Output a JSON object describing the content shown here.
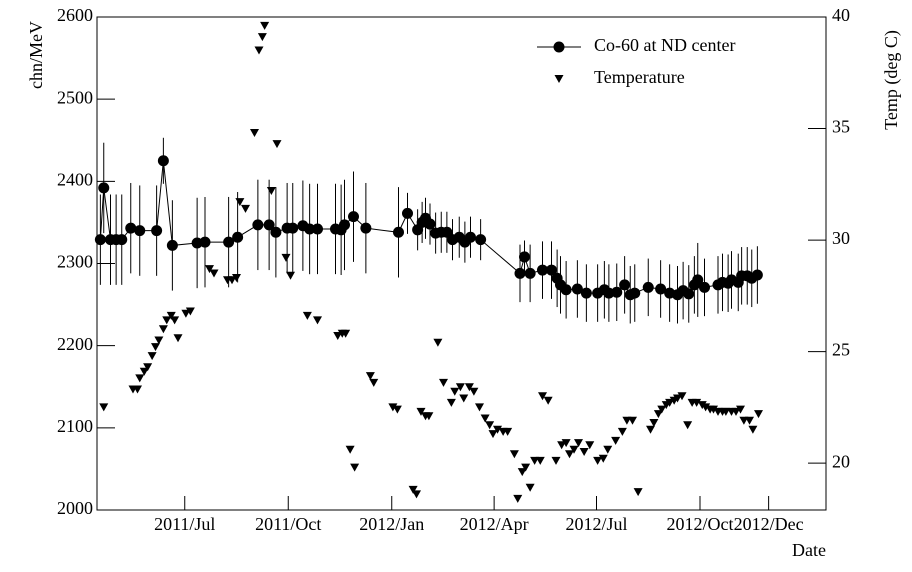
{
  "chart_data": {
    "type": "scatter",
    "y_label": "chn/MeV",
    "y2_label": "Temp (deg C)",
    "x_label": "Date",
    "xlim": [
      103,
      751
    ],
    "xticks": [
      {
        "value": 181,
        "label": "2011/Jul"
      },
      {
        "value": 273,
        "label": "2011/Oct"
      },
      {
        "value": 365,
        "label": "2012/Jan"
      },
      {
        "value": 456,
        "label": "2012/Apr"
      },
      {
        "value": 547,
        "label": "2012/Jul"
      },
      {
        "value": 639,
        "label": "2012/Oct"
      },
      {
        "value": 700,
        "label": "2012/Dec"
      }
    ],
    "ylim": [
      2000,
      2600
    ],
    "yticks": [
      2000,
      2100,
      2200,
      2300,
      2400,
      2500,
      2600
    ],
    "y2lim": [
      17.9,
      40
    ],
    "y2ticks": [
      20,
      25,
      30,
      35,
      40
    ],
    "legend": "top-right",
    "series": [
      {
        "name": "Co-60 at ND center",
        "color": "#000000",
        "marker": "circle",
        "line": true,
        "x": [
          106,
          109,
          115,
          120,
          125,
          133,
          141,
          156,
          162,
          170,
          192,
          199,
          220,
          228,
          246,
          256,
          262,
          272,
          277,
          286,
          292,
          299,
          315,
          320,
          323,
          331,
          342,
          371,
          379,
          388,
          392,
          395,
          399,
          404,
          409,
          414,
          419,
          425,
          430,
          435,
          444,
          479,
          483,
          488,
          499,
          507,
          512,
          515,
          520,
          530,
          538,
          548,
          554,
          558,
          565,
          572,
          577,
          581,
          593,
          604,
          612,
          619,
          624,
          629,
          634,
          637,
          643,
          655,
          659,
          664,
          667,
          673,
          676,
          681,
          685,
          690
        ],
        "values": [
          2329,
          2392,
          2329,
          2329,
          2329,
          2343,
          2340,
          2340,
          2425,
          2322,
          2325,
          2326,
          2326,
          2332,
          2347,
          2347,
          2338,
          2343,
          2343,
          2346,
          2342,
          2342,
          2342,
          2341,
          2347,
          2357,
          2343,
          2338,
          2361,
          2341,
          2350,
          2355,
          2348,
          2337,
          2338,
          2338,
          2329,
          2332,
          2326,
          2332,
          2329,
          2288,
          2308,
          2288,
          2292,
          2292,
          2282,
          2274,
          2268,
          2269,
          2264,
          2264,
          2268,
          2264,
          2265,
          2274,
          2262,
          2264,
          2271,
          2269,
          2264,
          2262,
          2267,
          2263,
          2274,
          2280,
          2271,
          2274,
          2277,
          2276,
          2280,
          2277,
          2285,
          2285,
          2282,
          2286
        ],
        "errors": [
          55,
          55,
          55,
          55,
          55,
          55,
          55,
          55,
          28,
          55,
          55,
          55,
          55,
          55,
          55,
          55,
          55,
          55,
          55,
          55,
          55,
          55,
          55,
          55,
          55,
          55,
          55,
          55,
          25,
          25,
          25,
          25,
          25,
          25,
          25,
          25,
          25,
          25,
          25,
          25,
          25,
          35,
          20,
          35,
          35,
          35,
          35,
          35,
          35,
          35,
          35,
          35,
          35,
          35,
          35,
          35,
          35,
          35,
          35,
          35,
          35,
          35,
          35,
          35,
          35,
          45,
          35,
          35,
          35,
          35,
          35,
          35,
          35,
          35,
          35,
          35
        ]
      },
      {
        "name": "Temperature",
        "color": "#000000",
        "marker": "triangle-down",
        "axis": "y2",
        "x": [
          109,
          135,
          139,
          141,
          145,
          148,
          152,
          155,
          158,
          162,
          165,
          169,
          172,
          175,
          182,
          186,
          203,
          207,
          219,
          223,
          227,
          230,
          235,
          243,
          247,
          250,
          252,
          258,
          263,
          271,
          275,
          290,
          299,
          317,
          321,
          324,
          328,
          332,
          346,
          349,
          366,
          370,
          384,
          387,
          391,
          395,
          398,
          406,
          411,
          418,
          421,
          426,
          429,
          434,
          438,
          443,
          448,
          452,
          455,
          459,
          464,
          468,
          474,
          477,
          481,
          484,
          488,
          492,
          497,
          499,
          504,
          511,
          516,
          520,
          523,
          527,
          531,
          536,
          541,
          548,
          553,
          557,
          564,
          570,
          574,
          579,
          584,
          595,
          598,
          602,
          605,
          609,
          612,
          616,
          619,
          623,
          628,
          632,
          636,
          641,
          644,
          648,
          651,
          655,
          659,
          662,
          667,
          671,
          675,
          678,
          683,
          686,
          691
        ],
        "values": [
          22.5,
          23.3,
          23.3,
          23.8,
          24.1,
          24.3,
          24.8,
          25.2,
          25.5,
          26.0,
          26.4,
          26.6,
          26.4,
          25.6,
          26.7,
          26.8,
          28.7,
          28.5,
          28.2,
          28.2,
          28.3,
          31.7,
          31.4,
          34.8,
          38.5,
          39.1,
          39.6,
          32.2,
          34.3,
          29.2,
          28.4,
          26.6,
          26.4,
          25.7,
          25.8,
          25.8,
          20.6,
          19.8,
          23.9,
          23.6,
          22.5,
          22.4,
          18.8,
          18.6,
          22.3,
          22.1,
          22.1,
          25.4,
          23.6,
          22.7,
          23.2,
          23.4,
          22.9,
          23.4,
          23.2,
          22.5,
          22.0,
          21.7,
          21.3,
          21.5,
          21.4,
          21.4,
          20.4,
          18.4,
          19.6,
          19.8,
          18.9,
          20.1,
          20.1,
          23.0,
          22.8,
          20.1,
          20.8,
          20.9,
          20.4,
          20.6,
          20.9,
          20.5,
          20.8,
          20.1,
          20.2,
          20.6,
          21.0,
          21.4,
          21.9,
          21.9,
          18.7,
          21.5,
          21.8,
          22.2,
          22.4,
          22.6,
          22.7,
          22.8,
          22.9,
          23.0,
          21.7,
          22.7,
          22.7,
          22.6,
          22.5,
          22.4,
          22.4,
          22.3,
          22.3,
          22.3,
          22.3,
          22.3,
          22.4,
          21.9,
          21.9,
          21.5,
          22.2
        ]
      }
    ]
  }
}
